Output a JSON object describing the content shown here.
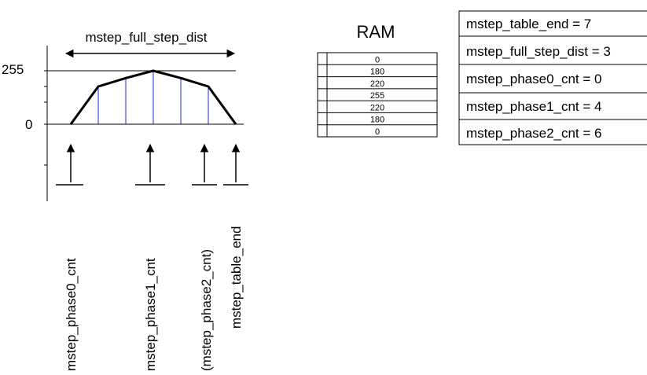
{
  "diagram": {
    "title": "mstep_full_step_dist",
    "y_labels": {
      "top": "255",
      "zero": "0"
    },
    "curve_values": [
      0,
      180,
      220,
      255,
      220,
      180,
      0
    ],
    "pointer_labels": [
      "mstep_phase0_cnt",
      "mstep_phase1_cnt",
      "(mstep_phase2_cnt)",
      "mstep_table_end"
    ]
  },
  "ram": {
    "title": "RAM",
    "values": [
      "0",
      "180",
      "220",
      "255",
      "220",
      "180",
      "0"
    ]
  },
  "params": [
    "mstep_table_end = 7",
    "mstep_full_step_dist = 3",
    "mstep_phase0_cnt = 0",
    "mstep_phase1_cnt = 4",
    "mstep_phase2_cnt = 6"
  ],
  "colors": {
    "line": "#000000",
    "sample_line": "#1f2ad6"
  }
}
